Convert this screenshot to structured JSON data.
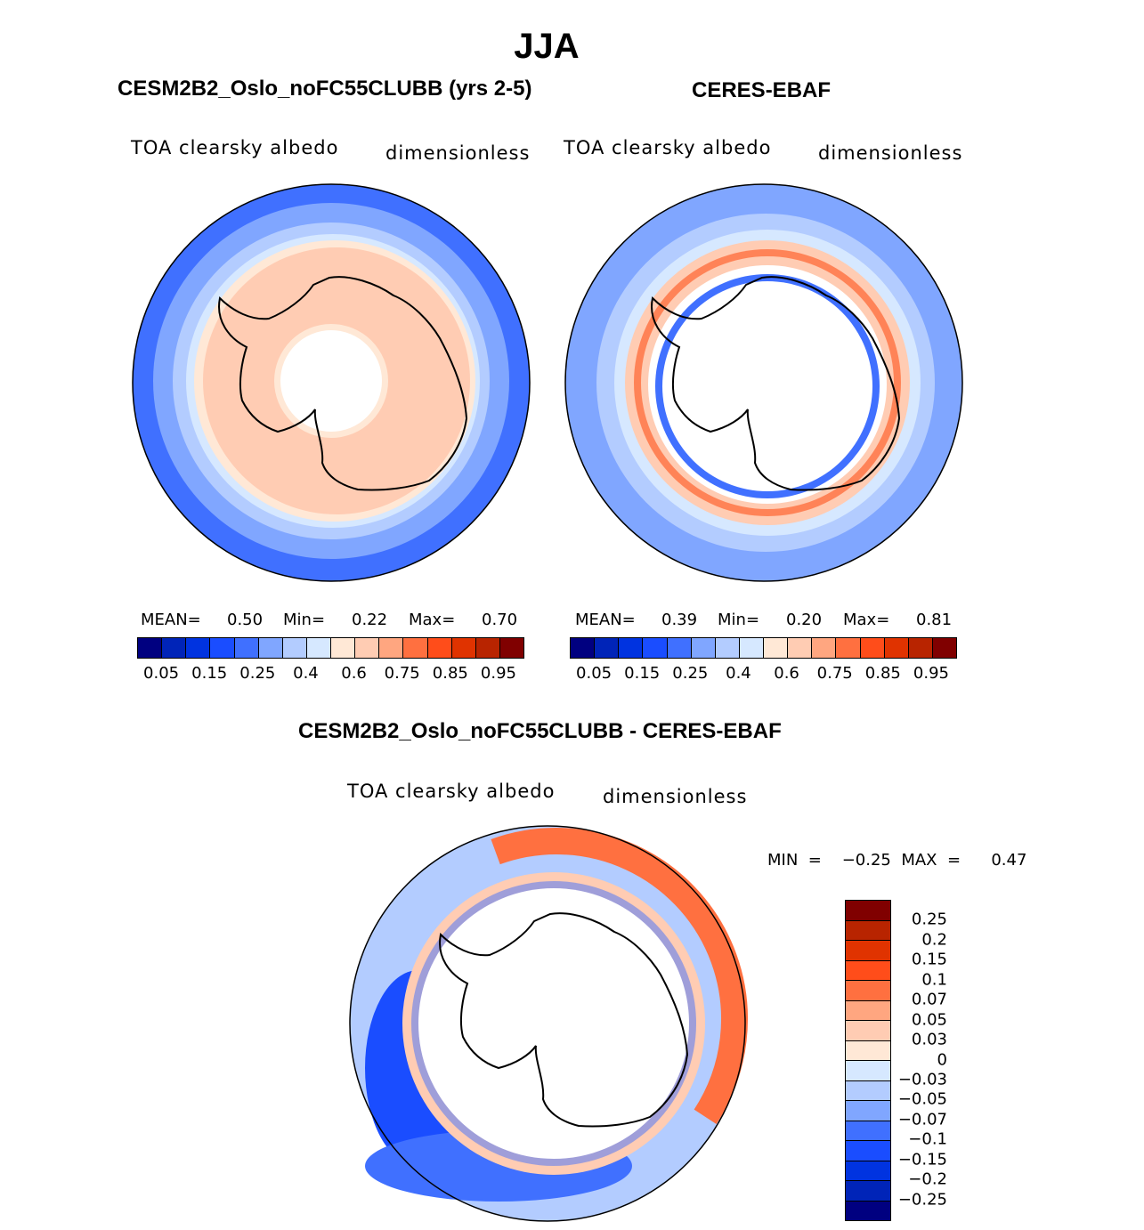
{
  "title": "JJA",
  "panels": [
    {
      "title": "CESM2B2_Oslo_noFC55CLUBB (yrs 2-5)",
      "variable": "TOA  clearsky  albedo",
      "units": "dimensionless",
      "stats": {
        "mean_label": "MEAN=",
        "mean": "0.50",
        "min_label": "Min=",
        "min": "0.22",
        "max_label": "Max=",
        "max": "0.70"
      }
    },
    {
      "title": "CERES-EBAF",
      "variable": "TOA  clearsky  albedo",
      "units": "dimensionless",
      "stats": {
        "mean_label": "MEAN=",
        "mean": "0.39",
        "min_label": "Min=",
        "min": "0.20",
        "max_label": "Max=",
        "max": "0.81"
      }
    },
    {
      "title": "CESM2B2_Oslo_noFC55CLUBB - CERES-EBAF",
      "variable": "TOA  clearsky  albedo",
      "units": "dimensionless",
      "stats": {
        "text": "MIN  =    −0.25  MAX  =      0.47"
      }
    }
  ],
  "chart_data": {
    "type": "heatmap",
    "projection": "south-polar-stereographic",
    "colorbar_main": {
      "colors": [
        "#000080",
        "#0024b8",
        "#0033e0",
        "#1a4dff",
        "#4070ff",
        "#80a6ff",
        "#b3ccff",
        "#d6e8ff",
        "#ffe8d6",
        "#ffccb3",
        "#ffa680",
        "#ff7040",
        "#ff4d1a",
        "#e03300",
        "#b82400",
        "#800000"
      ],
      "tick_labels": [
        "0.05",
        "0.15",
        "0.25",
        "0.4",
        "0.6",
        "0.75",
        "0.85",
        "0.95"
      ]
    },
    "colorbar_diff": {
      "colors": [
        "#800000",
        "#b82400",
        "#e03300",
        "#ff4d1a",
        "#ff7040",
        "#ffa680",
        "#ffccb3",
        "#ffe8d6",
        "#d6e8ff",
        "#b3ccff",
        "#80a6ff",
        "#4070ff",
        "#1a4dff",
        "#0033e0",
        "#0024b8",
        "#000080"
      ],
      "tick_labels": [
        "0.25",
        "0.2",
        "0.15",
        "0.1",
        "0.07",
        "0.05",
        "0.03",
        "0",
        "−0.03",
        "−0.05",
        "−0.07",
        "−0.1",
        "−0.15",
        "−0.2",
        "−0.25"
      ]
    }
  }
}
